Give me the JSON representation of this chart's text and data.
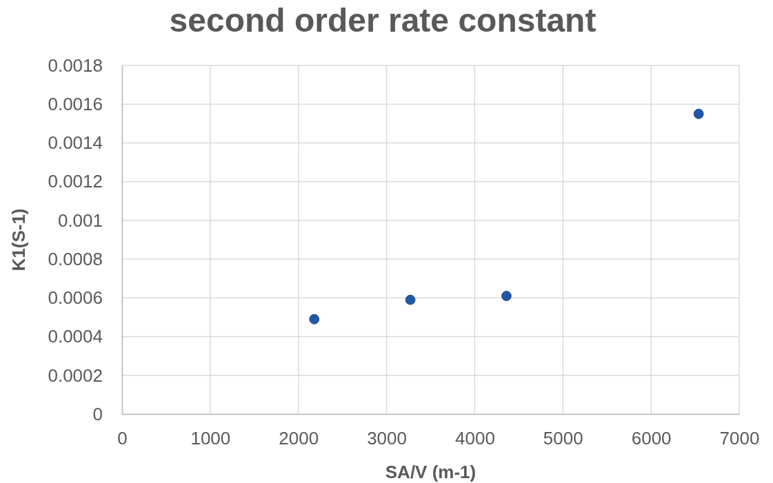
{
  "chart_data": {
    "type": "scatter",
    "title": "second order rate constant",
    "xlabel": "SA/V (m-1)",
    "ylabel": "K1(S-1)",
    "x": [
      2180,
      3270,
      4360,
      6540
    ],
    "series": [
      {
        "color": "#2157a6",
        "values": [
          0.00049,
          0.00059,
          0.00061,
          0.00155
        ]
      }
    ],
    "xlim": [
      0,
      7000
    ],
    "xticks": [
      0,
      1000,
      2000,
      3000,
      4000,
      5000,
      6000,
      7000
    ],
    "ylim": [
      0,
      0.0018
    ],
    "yticks": [
      0,
      0.0002,
      0.0004,
      0.0006,
      0.0008,
      0.001,
      0.0012,
      0.0014,
      0.0016,
      0.0018
    ],
    "grid": true,
    "marker": "circle"
  }
}
